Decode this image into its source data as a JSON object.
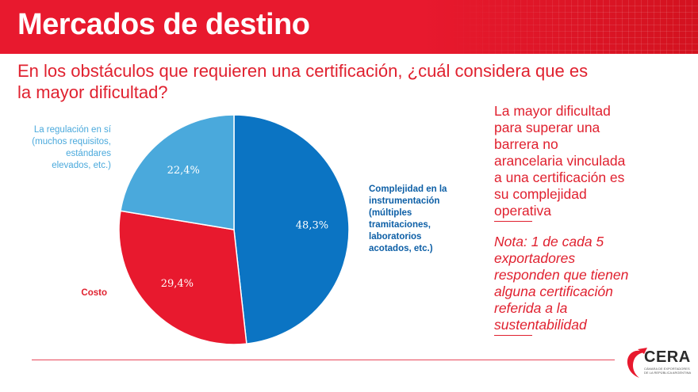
{
  "header": {
    "title": "Mercados de destino"
  },
  "question": "En los obstáculos que requieren una certificación, ¿cuál considera que es la mayor dificultad?",
  "colors": {
    "brand_red": "#e8192e",
    "complejidad": "#0b74c3",
    "costo": "#e8192e",
    "regulacion": "#4aa9dc"
  },
  "chart_data": {
    "type": "pie",
    "slices": [
      {
        "label": "Complejidad en la instrumentación (múltiples tramitaciones, laboratorios acotados, etc.)",
        "value": 48.3,
        "value_label": "48,3%",
        "color": "#0b74c3"
      },
      {
        "label": "Costo",
        "value": 29.4,
        "value_label": "29,4%",
        "color": "#e8192e"
      },
      {
        "label": "La regulación en sí (muchos requisitos, estándares elevados, etc.)",
        "value": 22.4,
        "value_label": "22,4%",
        "color": "#4aa9dc"
      }
    ]
  },
  "sidebar": {
    "finding": "La mayor dificultad para superar una barrera no arancelaria vinculada a una certificación es su complejidad operativa",
    "note": "Nota: 1 de cada 5 exportadores responden que tienen alguna certificación referida a la sustentabilidad"
  },
  "logo": {
    "name": "CERA",
    "subtitle": "CÁMARA DE EXPORTADORES DE LA REPÚBLICA ARGENTINA"
  }
}
